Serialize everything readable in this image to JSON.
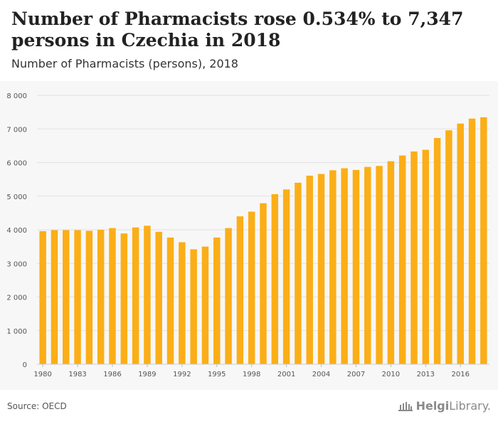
{
  "header": {
    "title": "Number of Pharmacists rose 0.534% to 7,347 persons in Czechia in 2018",
    "subtitle": "Number of Pharmacists (persons), 2018"
  },
  "footer": {
    "source": "Source: OECD",
    "logo_bold": "Helgi",
    "logo_rest": "Library."
  },
  "colors": {
    "bar": "#FBAE17",
    "grid": "#e2e2e2",
    "panel": "#f7f7f7",
    "axis_text": "#555555"
  },
  "chart_data": {
    "type": "bar",
    "title": "Number of Pharmacists (persons), 2018",
    "xlabel": "",
    "ylabel": "",
    "ylim": [
      0,
      8000
    ],
    "yticks": [
      0,
      1000,
      2000,
      3000,
      4000,
      5000,
      6000,
      7000,
      8000
    ],
    "ytick_labels": [
      "0",
      "1 000",
      "2 000",
      "3 000",
      "4 000",
      "5 000",
      "6 000",
      "7 000",
      "8 000"
    ],
    "xtick_labels": [
      "1980",
      "1983",
      "1986",
      "1989",
      "1992",
      "1995",
      "1998",
      "2001",
      "2004",
      "2007",
      "2010",
      "2013",
      "2016"
    ],
    "grid": true,
    "categories": [
      "1980",
      "1981",
      "1982",
      "1983",
      "1984",
      "1985",
      "1986",
      "1987",
      "1988",
      "1989",
      "1990",
      "1991",
      "1992",
      "1993",
      "1994",
      "1995",
      "1996",
      "1997",
      "1998",
      "1999",
      "2000",
      "2001",
      "2002",
      "2003",
      "2004",
      "2005",
      "2006",
      "2007",
      "2008",
      "2009",
      "2010",
      "2011",
      "2012",
      "2013",
      "2014",
      "2015",
      "2016",
      "2017",
      "2018"
    ],
    "values": [
      3960,
      3990,
      3990,
      3990,
      3970,
      4000,
      4050,
      3890,
      4070,
      4120,
      3940,
      3770,
      3630,
      3420,
      3500,
      3770,
      4050,
      4400,
      4540,
      4790,
      5060,
      5200,
      5400,
      5610,
      5660,
      5770,
      5830,
      5780,
      5870,
      5900,
      6040,
      6210,
      6330,
      6380,
      6730,
      6960,
      7160,
      7308,
      7347
    ]
  }
}
